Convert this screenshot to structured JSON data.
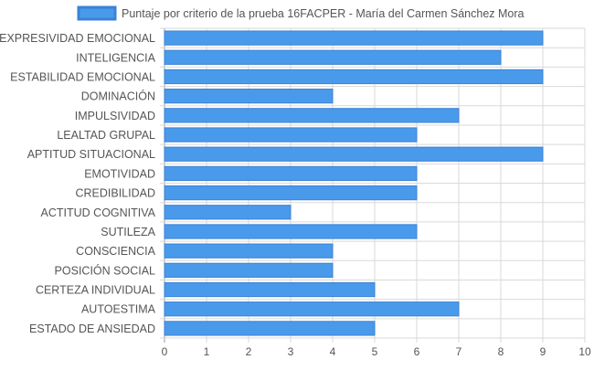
{
  "chart_data": {
    "type": "bar",
    "orientation": "horizontal",
    "legend_position": "top",
    "grid": true,
    "colors": {
      "bar_fill": "#4a9aeb",
      "bar_stroke": "#3b82d6",
      "grid": "#d9d9d9",
      "text": "#555555"
    },
    "categories": [
      "EXPRESIVIDAD EMOCIONAL",
      "INTELIGENCIA",
      "ESTABILIDAD EMOCIONAL",
      "DOMINACIÓN",
      "IMPULSIVIDAD",
      "LEALTAD GRUPAL",
      "APTITUD SITUACIONAL",
      "EMOTIVIDAD",
      "CREDIBILIDAD",
      "ACTITUD COGNITIVA",
      "SUTILEZA",
      "CONSCIENCIA",
      "POSICIÓN SOCIAL",
      "CERTEZA INDIVIDUAL",
      "AUTOESTIMA",
      "ESTADO DE ANSIEDAD"
    ],
    "series": [
      {
        "name": "Puntaje por criterio de la prueba 16FACPER - María del Carmen Sánchez Mora",
        "values": [
          9,
          8,
          9,
          4,
          7,
          6,
          9,
          6,
          6,
          3,
          6,
          4,
          4,
          5,
          7,
          5
        ]
      }
    ],
    "xlim": [
      0,
      10
    ],
    "xticks": [
      "0",
      "1",
      "2",
      "3",
      "4",
      "5",
      "6",
      "7",
      "8",
      "9",
      "10"
    ]
  }
}
